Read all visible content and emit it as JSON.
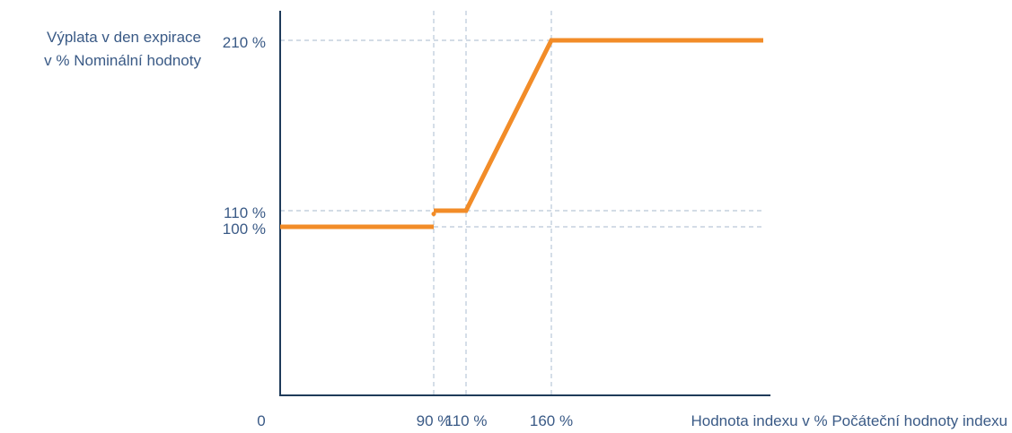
{
  "chart_data": {
    "type": "line",
    "title": "",
    "ylabel_lines": [
      "Výplata v den expirace",
      "v % Nominální hodnoty"
    ],
    "xlabel": "Hodnota indexu v % Počáteční hodnoty indexu",
    "x_origin_label": "0",
    "x_ticks": [
      {
        "value": 90,
        "label": "90 %"
      },
      {
        "value": 110,
        "label": "110 %"
      },
      {
        "value": 160,
        "label": "160 %"
      }
    ],
    "y_ticks": [
      {
        "value": 100,
        "label": "100 %"
      },
      {
        "value": 110,
        "label": "110 %"
      },
      {
        "value": 210,
        "label": "210 %"
      }
    ],
    "series": [
      {
        "segments": [
          [
            [
              0,
              100
            ],
            [
              90,
              100
            ]
          ],
          [
            [
              90,
              110
            ],
            [
              110,
              110
            ],
            [
              160,
              210
            ],
            [
              250,
              210
            ]
          ]
        ],
        "open_point": [
          90,
          108
        ]
      }
    ],
    "grid": "dashed reference lines at tick values",
    "colors": {
      "series": "#f28c28",
      "axis": "#1f3b5a",
      "grid": "#b9c7d8",
      "text": "#3a5a86"
    }
  }
}
